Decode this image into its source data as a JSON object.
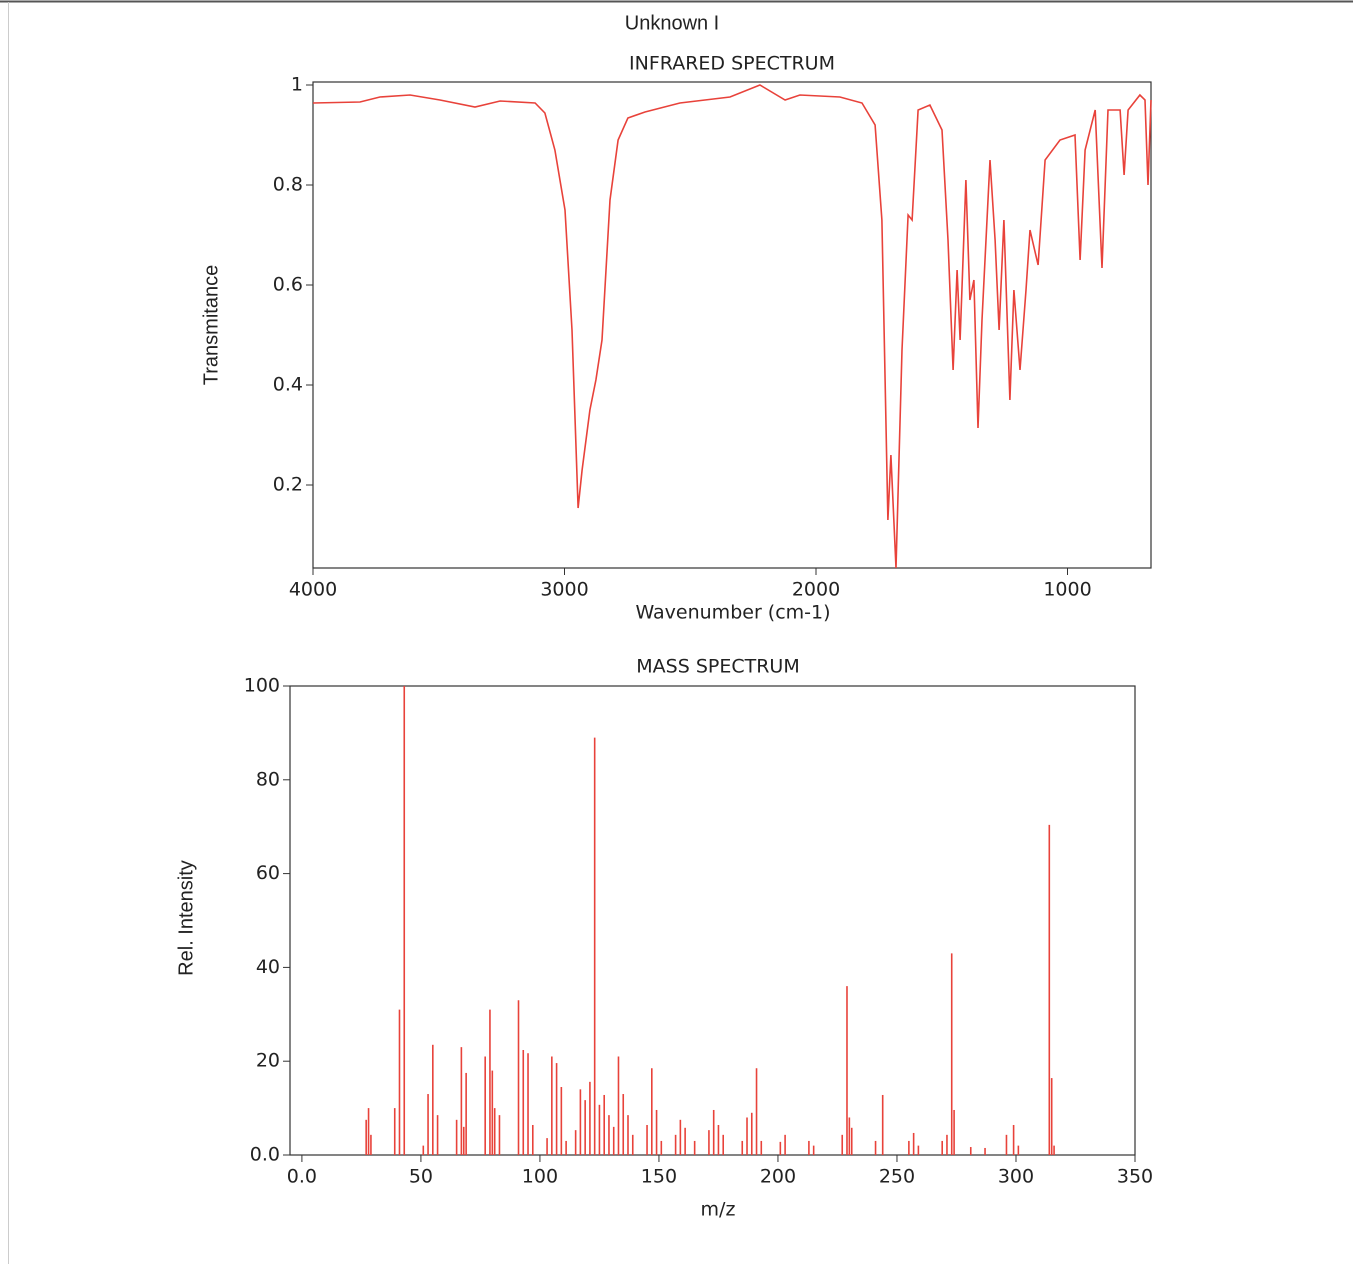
{
  "title": "Unknown I",
  "chart_data": [
    {
      "type": "line",
      "title": "INFRARED SPECTRUM",
      "x_label": "Wavenumber (cm-1)",
      "y_label": "Transmitance",
      "color": "#e8423a",
      "x": [
        4000,
        3813,
        3734,
        3614,
        3495,
        3356,
        3256,
        3117,
        3078,
        3038,
        2998,
        2970,
        2946,
        2930,
        2899,
        2875,
        2851,
        2819,
        2787,
        2748,
        2680,
        2541,
        2342,
        2223,
        2123,
        2064,
        1905,
        1817,
        1765,
        1738,
        1714,
        1702,
        1682,
        1658,
        1634,
        1618,
        1594,
        1547,
        1499,
        1475,
        1455,
        1439,
        1427,
        1404,
        1388,
        1372,
        1356,
        1340,
        1308,
        1288,
        1272,
        1253,
        1229,
        1213,
        1189,
        1165,
        1149,
        1117,
        1089,
        1030,
        970,
        950,
        930,
        890,
        863,
        839,
        791,
        775,
        759,
        712,
        692,
        680,
        668
      ],
      "values": [
        0.964,
        0.966,
        0.976,
        0.98,
        0.97,
        0.956,
        0.968,
        0.964,
        0.944,
        0.87,
        0.75,
        0.51,
        0.154,
        0.23,
        0.35,
        0.41,
        0.49,
        0.77,
        0.89,
        0.934,
        0.946,
        0.964,
        0.976,
        1.0,
        0.97,
        0.98,
        0.976,
        0.964,
        0.92,
        0.73,
        0.13,
        0.26,
        0.034,
        0.47,
        0.74,
        0.73,
        0.95,
        0.96,
        0.91,
        0.69,
        0.43,
        0.63,
        0.49,
        0.81,
        0.57,
        0.61,
        0.314,
        0.53,
        0.85,
        0.69,
        0.51,
        0.73,
        0.37,
        0.59,
        0.43,
        0.59,
        0.71,
        0.64,
        0.85,
        0.89,
        0.9,
        0.65,
        0.87,
        0.95,
        0.634,
        0.95,
        0.95,
        0.82,
        0.95,
        0.98,
        0.97,
        0.8,
        0.97
      ],
      "xlim": [
        4000,
        668
      ],
      "ylim": [
        0.034,
        1.006
      ],
      "xticks": [
        4000,
        3000,
        2000,
        1000
      ],
      "yticks": [
        0.2,
        0.4,
        0.6,
        0.8,
        1
      ]
    },
    {
      "type": "bar",
      "title": "MASS SPECTRUM",
      "x_label": "m/z",
      "y_label": "Rel. Intensity",
      "color": "#e8423a",
      "x": [
        27,
        28,
        29,
        39,
        41,
        43,
        51,
        53,
        55,
        57,
        65,
        67,
        68,
        69,
        77,
        79,
        80,
        81,
        83,
        91,
        93,
        95,
        97,
        103,
        105,
        107,
        109,
        111,
        115,
        117,
        119,
        121,
        123,
        125,
        127,
        129,
        131,
        133,
        135,
        137,
        139,
        145,
        147,
        149,
        151,
        157,
        159,
        161,
        165,
        171,
        173,
        175,
        177,
        185,
        187,
        189,
        191,
        193,
        201,
        203,
        213,
        215,
        227,
        229,
        230,
        231,
        241,
        244,
        255,
        257,
        259,
        269,
        271,
        273,
        274,
        281,
        287,
        296,
        299,
        301,
        314,
        315,
        316
      ],
      "values": [
        7.5,
        10,
        4.3,
        10,
        31,
        100,
        2,
        13,
        23.5,
        8.5,
        7.5,
        23,
        6,
        17.5,
        21,
        31,
        18,
        10,
        8.5,
        33,
        22.4,
        21.7,
        6.4,
        3.6,
        21,
        19.6,
        14.5,
        3,
        5.3,
        14,
        11.7,
        15.6,
        89,
        10.7,
        12.8,
        8.5,
        6,
        21,
        13,
        8.5,
        4.3,
        6.4,
        18.5,
        9.6,
        3,
        4.3,
        7.5,
        5.8,
        3,
        5.3,
        9.6,
        6.4,
        4.3,
        3,
        8,
        9,
        18.5,
        3,
        2.8,
        4.3,
        3,
        2,
        4.3,
        36,
        8,
        5.8,
        3,
        12.8,
        3,
        4.7,
        2,
        3,
        4.3,
        43,
        9.6,
        1.7,
        1.5,
        4.3,
        6.4,
        2,
        70.4,
        16.4,
        2
      ],
      "xlim": [
        -5,
        350
      ],
      "ylim": [
        0,
        100
      ],
      "xticks": [
        {
          "value": 0,
          "label": "0.0"
        },
        50,
        100,
        150,
        200,
        250,
        300,
        350
      ],
      "yticks": [
        {
          "value": 0,
          "label": "0.0"
        },
        20,
        40,
        60,
        80,
        100
      ]
    }
  ]
}
